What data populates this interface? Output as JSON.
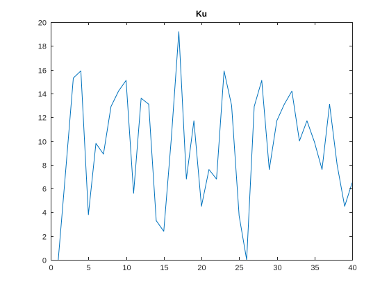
{
  "chart_data": {
    "type": "line",
    "title": "Ku",
    "xlabel": "",
    "ylabel": "",
    "xlim": [
      0,
      40
    ],
    "ylim": [
      0,
      20
    ],
    "xticks": [
      0,
      5,
      10,
      15,
      20,
      25,
      30,
      35,
      40
    ],
    "yticks": [
      0,
      2,
      4,
      6,
      8,
      10,
      12,
      14,
      16,
      18,
      20
    ],
    "grid": false,
    "box": true,
    "series": [
      {
        "color": "#0072BD",
        "x": [
          1,
          2,
          3,
          4,
          5,
          6,
          7,
          8,
          9,
          10,
          11,
          12,
          13,
          14,
          15,
          16,
          17,
          18,
          19,
          20,
          21,
          22,
          23,
          24,
          25,
          26,
          27,
          28,
          29,
          30,
          31,
          32,
          33,
          34,
          35,
          36,
          37,
          38,
          39,
          40
        ],
        "values": [
          0.0,
          7.6,
          15.3,
          15.9,
          3.8,
          9.8,
          8.9,
          12.9,
          14.2,
          15.1,
          5.6,
          13.6,
          13.1,
          3.3,
          2.4,
          10.2,
          19.2,
          6.8,
          11.7,
          4.5,
          7.6,
          6.8,
          15.9,
          13.0,
          3.7,
          0.0,
          12.9,
          15.1,
          7.6,
          11.7,
          13.1,
          14.2,
          10.0,
          11.7,
          9.9,
          7.6,
          13.1,
          8.0,
          4.5,
          6.5
        ]
      }
    ]
  }
}
